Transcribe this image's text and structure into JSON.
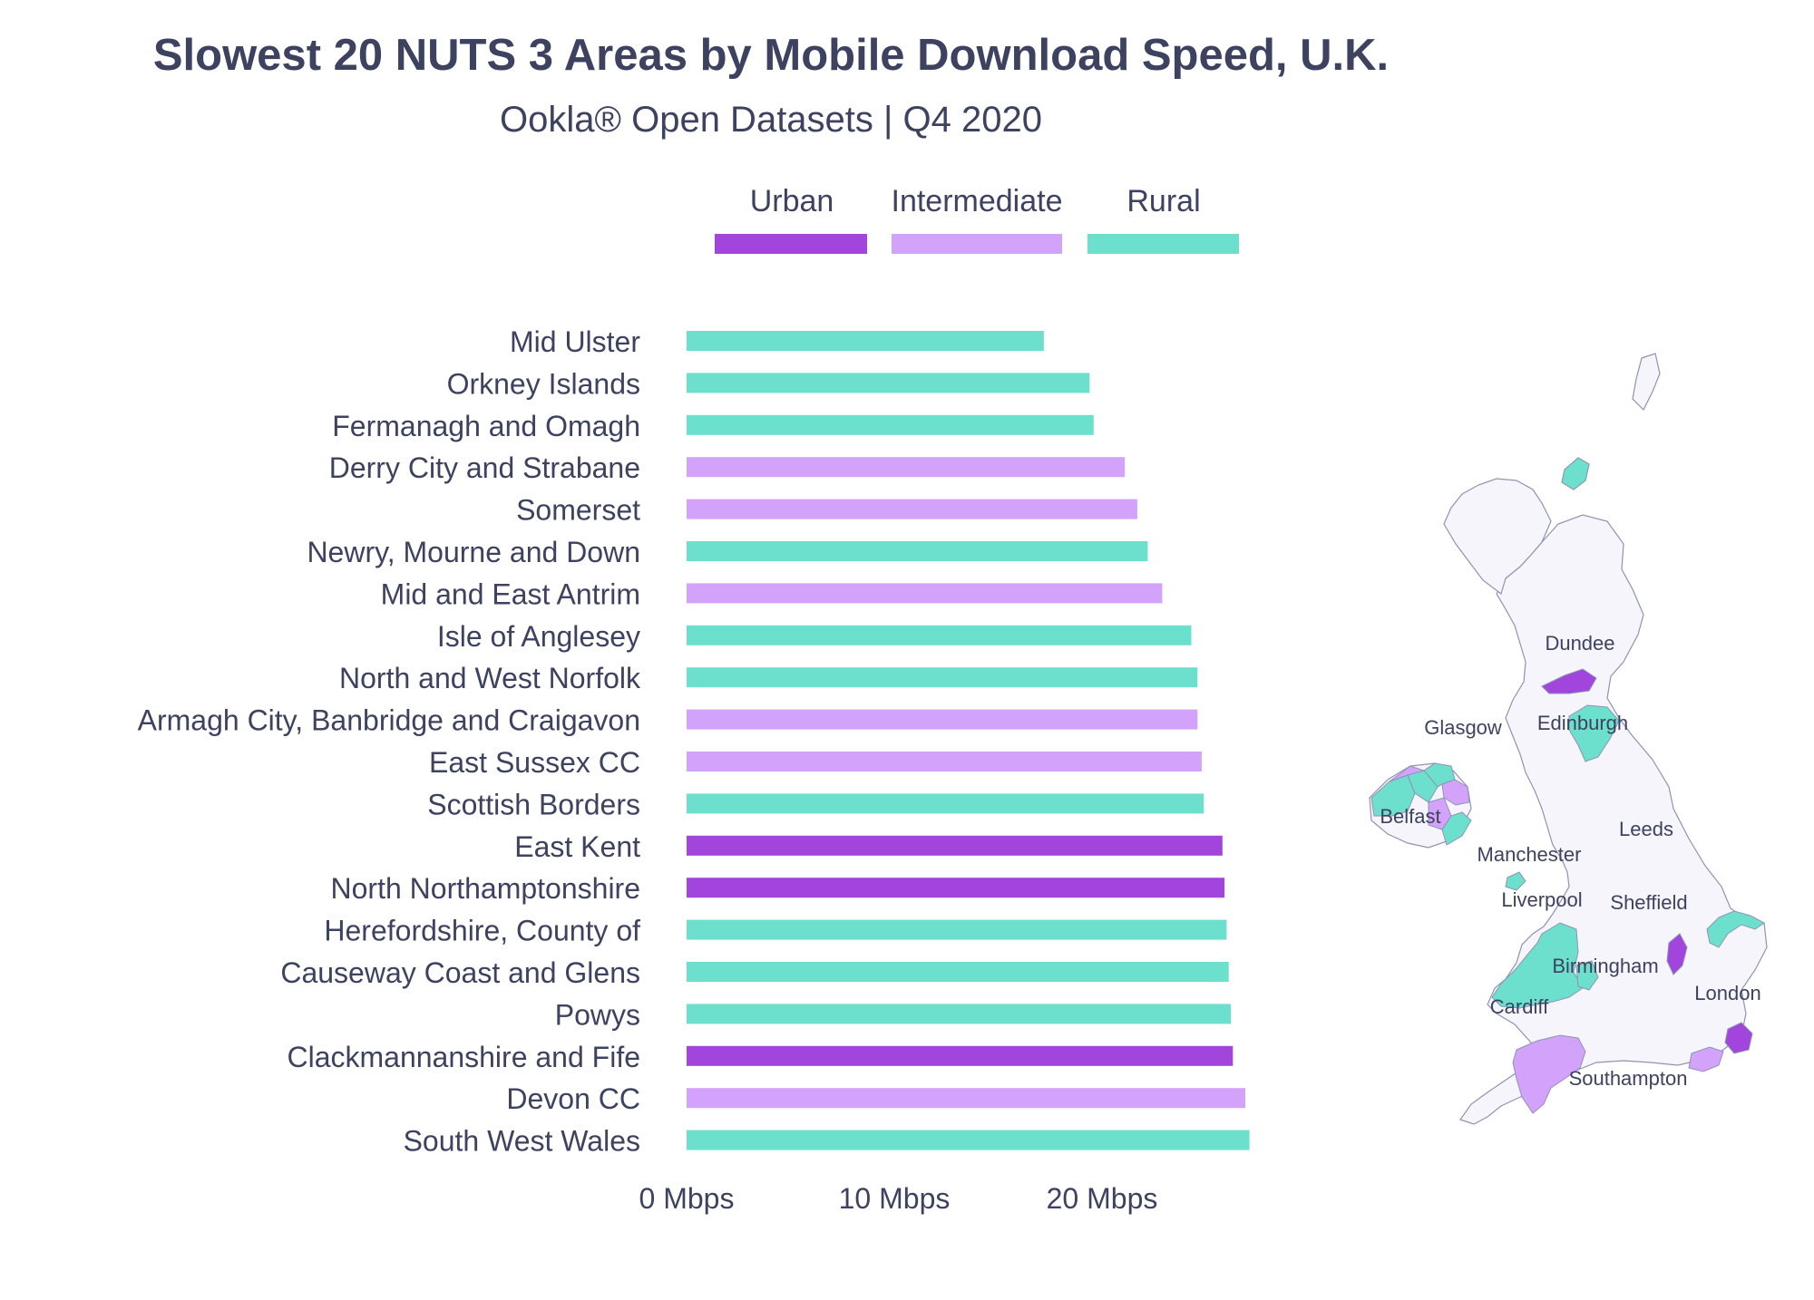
{
  "chart_data": {
    "type": "bar",
    "orientation": "horizontal",
    "title": "Slowest 20 NUTS 3 Areas by Mobile Download Speed, U.K.",
    "subtitle": "Ookla® Open Datasets | Q4 2020",
    "legend_position": "top-center",
    "legend": [
      {
        "name": "Urban",
        "color": "#a245dd"
      },
      {
        "name": "Intermediate",
        "color": "#d3a2fa"
      },
      {
        "name": "Rural",
        "color": "#6de0cd"
      }
    ],
    "categories": [
      "Mid Ulster",
      "Orkney Islands",
      "Fermanagh and Omagh",
      "Derry City and Strabane",
      "Somerset",
      "Newry, Mourne and Down",
      "Mid and East Antrim",
      "Isle of Anglesey",
      "North and West Norfolk",
      "Armagh City, Banbridge and Craigavon",
      "East Sussex CC",
      "Scottish Borders",
      "East Kent",
      "North Northamptonshire",
      "Herefordshire, County of",
      "Causeway Coast and Glens",
      "Powys",
      "Clackmannanshire and Fife",
      "Devon CC",
      "South West Wales"
    ],
    "values": [
      17.2,
      19.4,
      19.6,
      21.1,
      21.7,
      22.2,
      22.9,
      24.3,
      24.6,
      24.6,
      24.8,
      24.9,
      25.8,
      25.9,
      26.0,
      26.1,
      26.2,
      26.3,
      26.9,
      27.1
    ],
    "area_type": [
      "Rural",
      "Rural",
      "Rural",
      "Intermediate",
      "Intermediate",
      "Rural",
      "Intermediate",
      "Rural",
      "Rural",
      "Intermediate",
      "Intermediate",
      "Rural",
      "Urban",
      "Urban",
      "Rural",
      "Rural",
      "Rural",
      "Urban",
      "Intermediate",
      "Rural"
    ],
    "xaxis": {
      "range": [
        0,
        28
      ],
      "ticks": [
        0,
        10,
        20
      ],
      "tick_labels": [
        "0 Mbps",
        "10 Mbps",
        "20 Mbps"
      ]
    },
    "grid": false
  },
  "map": {
    "labels": [
      "Dundee",
      "Glasgow",
      "Edinburgh",
      "Belfast",
      "Leeds",
      "Manchester",
      "Liverpool",
      "Sheffield",
      "Birmingham",
      "London",
      "Cardiff",
      "Southampton"
    ],
    "region_fill": "#f6f5fb",
    "region_stroke": "#8f93b3"
  }
}
